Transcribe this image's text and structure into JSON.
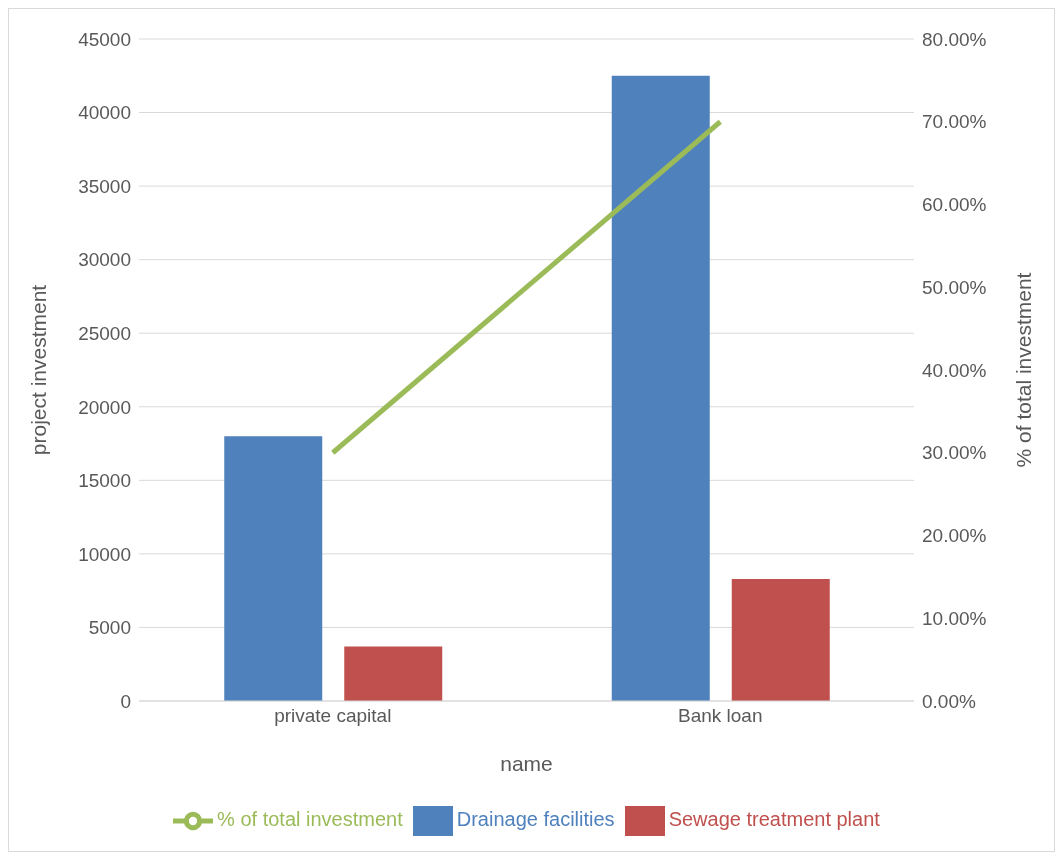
{
  "chart_data": {
    "type": "bar",
    "xlabel": "name",
    "ylabel": "project investment",
    "y2label": "% of total investment",
    "categories": [
      "private capital",
      "Bank loan"
    ],
    "series": [
      {
        "name": "Drainage facilities",
        "color": "#4f81bd",
        "values": [
          18000,
          42500
        ]
      },
      {
        "name": "Sewage treatment plant",
        "color": "#c0504d",
        "values": [
          3700,
          8300
        ]
      },
      {
        "name": "% of total investment",
        "type": "line",
        "axis": "y2",
        "color": "#9bbb59",
        "values": [
          30,
          70
        ]
      }
    ],
    "ylim": [
      0,
      45000
    ],
    "yticks": [
      0,
      5000,
      10000,
      15000,
      20000,
      25000,
      30000,
      35000,
      40000,
      45000
    ],
    "y2lim": [
      0,
      80
    ],
    "y2ticks": [
      {
        "value": 0,
        "label": "0.00%"
      },
      {
        "value": 10,
        "label": "10.00%"
      },
      {
        "value": 20,
        "label": "20.00%"
      },
      {
        "value": 30,
        "label": "30.00%"
      },
      {
        "value": 40,
        "label": "40.00%"
      },
      {
        "value": 50,
        "label": "50.00%"
      },
      {
        "value": 60,
        "label": "60.00%"
      },
      {
        "value": 70,
        "label": "70.00%"
      },
      {
        "value": 80,
        "label": "80.00%"
      }
    ],
    "grid": "y",
    "legend": "bottom",
    "marker": "none"
  }
}
